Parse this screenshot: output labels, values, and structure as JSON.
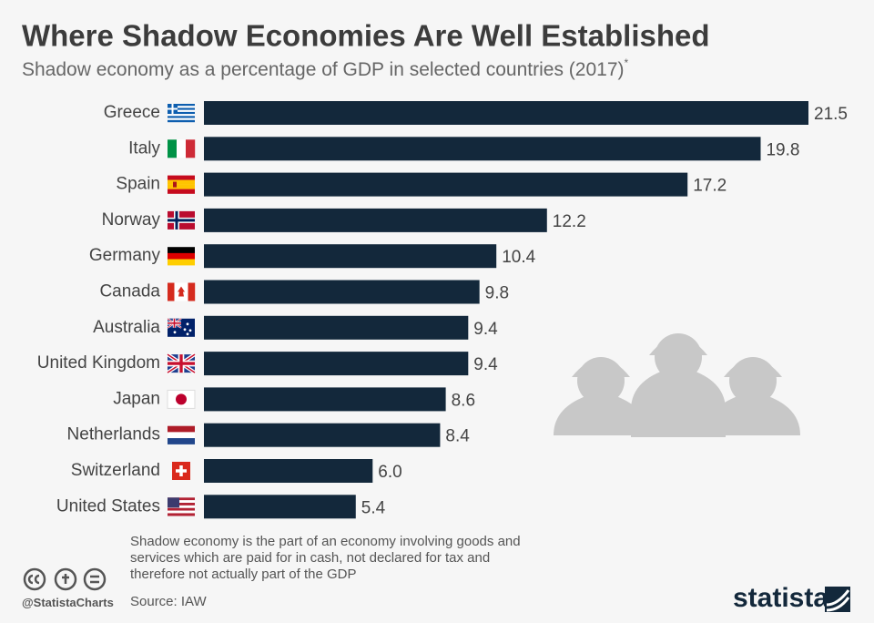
{
  "chart_data": {
    "type": "bar",
    "orientation": "horizontal",
    "title": "Where Shadow Economies Are Well Established",
    "subtitle": "Shadow economy as a percentage of GDP in selected countries (2017)",
    "subtitle_marker": "*",
    "categories": [
      "Greece",
      "Italy",
      "Spain",
      "Norway",
      "Germany",
      "Canada",
      "Australia",
      "United Kingdom",
      "Japan",
      "Netherlands",
      "Switzerland",
      "United States"
    ],
    "values": [
      21.5,
      19.8,
      17.2,
      12.2,
      10.4,
      9.8,
      9.4,
      9.4,
      8.6,
      8.4,
      6.0,
      5.4
    ],
    "value_labels": [
      "21.5",
      "19.8",
      "17.2",
      "12.2",
      "10.4",
      "9.8",
      "9.4",
      "9.4",
      "8.6",
      "8.4",
      "6.0",
      "5.4"
    ],
    "color": "#13283b",
    "footnote": "Shadow economy is the part of an economy involving goods and services which are paid for in cash, not declared for tax and therefore not actually part of the GDP",
    "source": "Source: IAW",
    "credit": "@StatistaCharts",
    "logo": "statista"
  }
}
